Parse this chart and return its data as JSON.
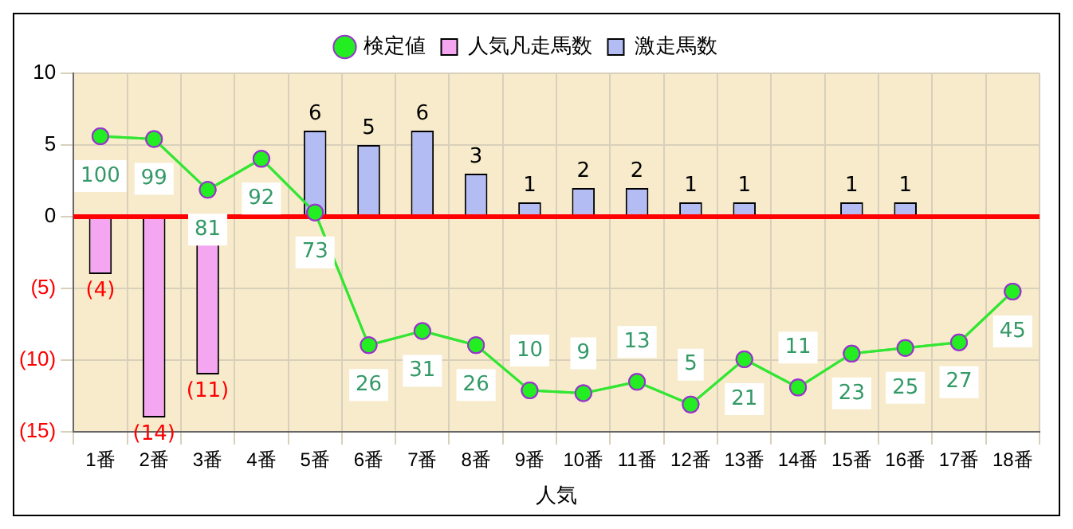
{
  "chart_data": {
    "type": "bar",
    "xlabel": "人気",
    "categories": [
      "1番",
      "2番",
      "3番",
      "4番",
      "5番",
      "6番",
      "7番",
      "8番",
      "9番",
      "10番",
      "11番",
      "12番",
      "13番",
      "14番",
      "15番",
      "16番",
      "17番",
      "18番"
    ],
    "series": [
      {
        "name": "人気凡走馬数",
        "color": "#f4a6f0",
        "values": [
          -4,
          -14,
          -11,
          null,
          null,
          null,
          null,
          null,
          null,
          null,
          null,
          null,
          null,
          null,
          null,
          null,
          null,
          null
        ],
        "value_labels": [
          "(4)",
          "(14)",
          "(11)",
          null,
          null,
          null,
          null,
          null,
          null,
          null,
          null,
          null,
          null,
          null,
          null,
          null,
          null,
          null
        ]
      },
      {
        "name": "激走馬数",
        "color": "#b4bcf4",
        "values": [
          null,
          null,
          null,
          null,
          6,
          5,
          6,
          3,
          1,
          2,
          2,
          1,
          1,
          null,
          1,
          1,
          null,
          null
        ],
        "value_labels": [
          null,
          null,
          null,
          null,
          "6",
          "5",
          "6",
          "3",
          "1",
          "2",
          "2",
          "1",
          "1",
          null,
          "1",
          "1",
          null,
          null
        ]
      },
      {
        "name": "検定値",
        "type": "line",
        "axis": "y2",
        "color": "#33e633",
        "values": [
          100,
          99,
          81,
          92,
          73,
          26,
          31,
          26,
          10,
          9,
          13,
          5,
          21,
          11,
          23,
          25,
          27,
          45
        ],
        "value_labels": [
          "100",
          "99",
          "81",
          "92",
          "73",
          "26",
          "31",
          "26",
          "10",
          "9",
          "13",
          "5",
          "21",
          "11",
          "23",
          "25",
          "27",
          "45"
        ]
      }
    ],
    "ylim": [
      -15,
      10
    ],
    "yticks": [
      {
        "value": -15,
        "label": "(15)"
      },
      {
        "value": -10,
        "label": "(10)"
      },
      {
        "value": -5,
        "label": "(5)"
      },
      0,
      5,
      10
    ],
    "y2lim": [
      -4.7,
      122.3
    ],
    "ref_lines": [
      {
        "axis": "y",
        "value": 0,
        "color": "#ff0000"
      }
    ],
    "grid": true,
    "legend": "top",
    "marker": "circle"
  }
}
